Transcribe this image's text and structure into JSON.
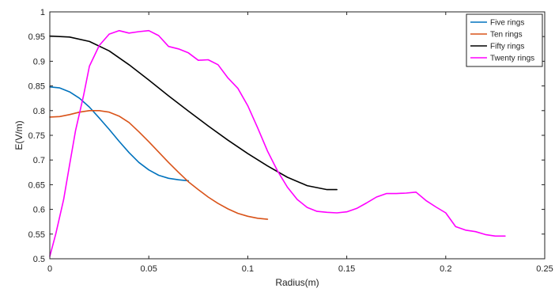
{
  "chart_data": {
    "type": "line",
    "xlabel": "Radius(m)",
    "ylabel": "E(V/m)",
    "xlim": [
      0,
      0.25
    ],
    "ylim": [
      0.5,
      1.0
    ],
    "xticks": [
      0,
      0.05,
      0.1,
      0.15,
      0.2,
      0.25
    ],
    "xtick_labels": [
      "0",
      "0.05",
      "0.1",
      "0.15",
      "0.2",
      "0.25"
    ],
    "yticks": [
      0.5,
      0.55,
      0.6,
      0.65,
      0.7,
      0.75,
      0.8,
      0.85,
      0.9,
      0.95,
      1.0
    ],
    "ytick_labels": [
      "0.5",
      "0.55",
      "0.6",
      "0.65",
      "0.7",
      "0.75",
      "0.8",
      "0.85",
      "0.9",
      "0.95",
      "1"
    ],
    "grid": false,
    "legend_position": "top-right",
    "series": [
      {
        "name": "Five rings",
        "color": "#0072BD",
        "x": [
          0,
          0.005,
          0.01,
          0.015,
          0.02,
          0.025,
          0.03,
          0.035,
          0.04,
          0.045,
          0.05,
          0.055,
          0.06,
          0.065,
          0.07
        ],
        "y": [
          0.848,
          0.846,
          0.838,
          0.825,
          0.807,
          0.785,
          0.762,
          0.738,
          0.715,
          0.695,
          0.68,
          0.669,
          0.663,
          0.66,
          0.658
        ]
      },
      {
        "name": "Ten rings",
        "color": "#D95319",
        "x": [
          0,
          0.005,
          0.01,
          0.015,
          0.02,
          0.025,
          0.03,
          0.035,
          0.04,
          0.045,
          0.05,
          0.055,
          0.06,
          0.065,
          0.07,
          0.075,
          0.08,
          0.085,
          0.09,
          0.095,
          0.1,
          0.105,
          0.11
        ],
        "y": [
          0.787,
          0.788,
          0.792,
          0.797,
          0.8,
          0.8,
          0.797,
          0.789,
          0.776,
          0.757,
          0.737,
          0.716,
          0.695,
          0.675,
          0.656,
          0.64,
          0.625,
          0.612,
          0.601,
          0.592,
          0.586,
          0.582,
          0.58
        ]
      },
      {
        "name": "Fifty rings",
        "color": "#000000",
        "x": [
          0,
          0.01,
          0.02,
          0.03,
          0.04,
          0.05,
          0.06,
          0.07,
          0.08,
          0.09,
          0.1,
          0.11,
          0.12,
          0.13,
          0.14,
          0.145
        ],
        "y": [
          0.951,
          0.949,
          0.94,
          0.921,
          0.893,
          0.862,
          0.83,
          0.799,
          0.769,
          0.74,
          0.713,
          0.688,
          0.665,
          0.648,
          0.64,
          0.64
        ]
      },
      {
        "name": "Twenty rings",
        "color": "#FF00FF",
        "x": [
          0,
          0.003,
          0.007,
          0.01,
          0.013,
          0.017,
          0.02,
          0.025,
          0.03,
          0.035,
          0.04,
          0.045,
          0.05,
          0.055,
          0.06,
          0.065,
          0.07,
          0.075,
          0.08,
          0.085,
          0.09,
          0.095,
          0.1,
          0.105,
          0.11,
          0.115,
          0.12,
          0.125,
          0.13,
          0.135,
          0.14,
          0.145,
          0.15,
          0.155,
          0.16,
          0.165,
          0.17,
          0.175,
          0.18,
          0.185,
          0.19,
          0.195,
          0.2,
          0.205,
          0.21,
          0.215,
          0.22,
          0.225,
          0.23
        ],
        "y": [
          0.505,
          0.55,
          0.62,
          0.69,
          0.76,
          0.83,
          0.89,
          0.932,
          0.955,
          0.962,
          0.957,
          0.96,
          0.962,
          0.952,
          0.93,
          0.925,
          0.917,
          0.902,
          0.903,
          0.893,
          0.866,
          0.845,
          0.81,
          0.765,
          0.718,
          0.678,
          0.645,
          0.62,
          0.604,
          0.596,
          0.594,
          0.593,
          0.595,
          0.602,
          0.613,
          0.625,
          0.632,
          0.632,
          0.633,
          0.635,
          0.618,
          0.605,
          0.593,
          0.565,
          0.558,
          0.555,
          0.549,
          0.546,
          0.546
        ]
      }
    ]
  }
}
